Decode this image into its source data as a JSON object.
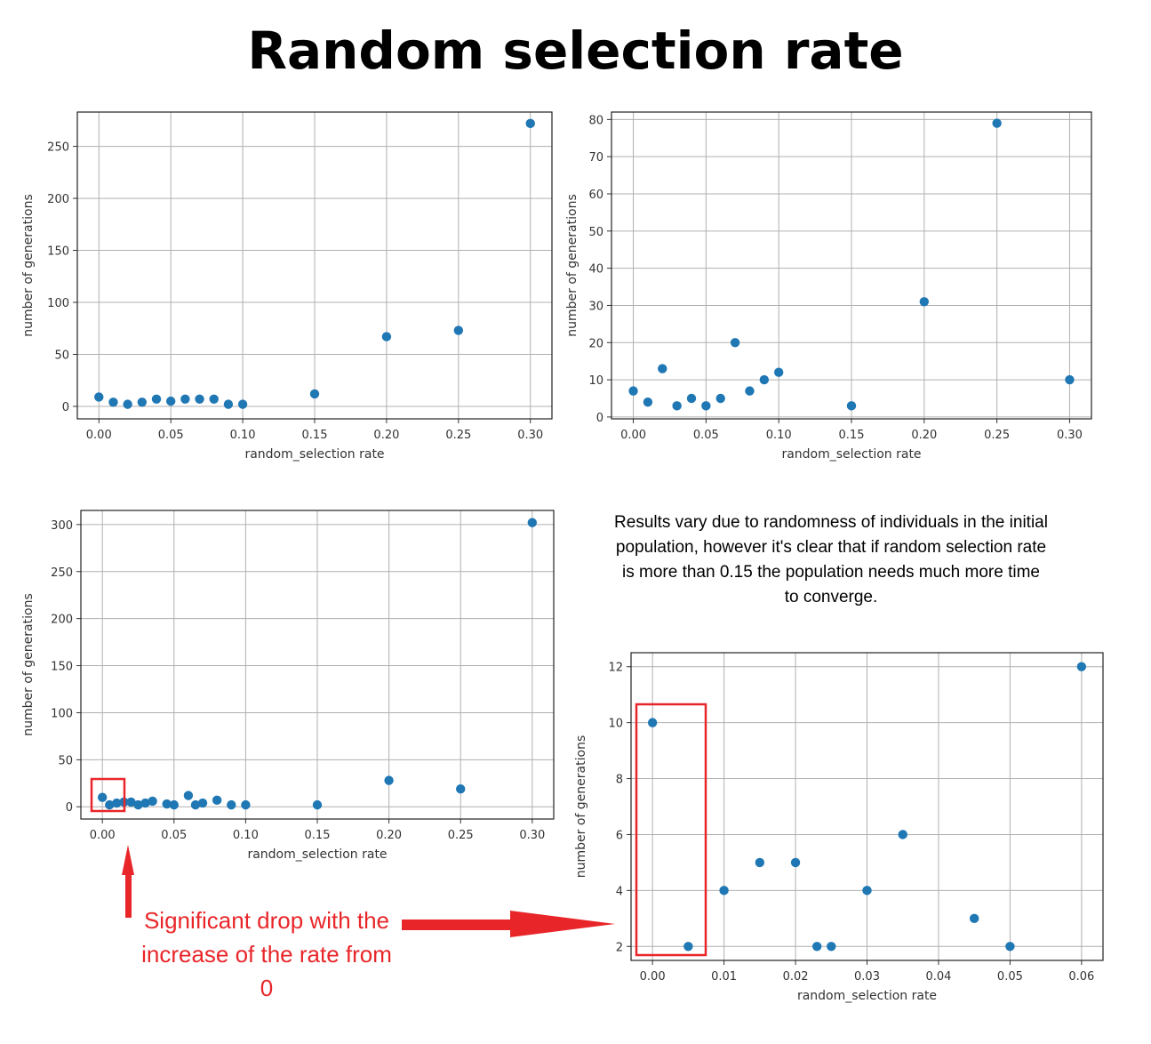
{
  "title": "Random selection rate",
  "note": "Results vary due to randomness of individuals in the initial population, however it's clear that if random selection rate is more than 0.15 the population needs much more time to converge.",
  "annotation": {
    "text": "Significant drop with the increase of the rate from 0",
    "color": "#e8262a"
  },
  "colors": {
    "marker": "#1f77b4",
    "grid": "#b0b0b0",
    "highlight": "#e8262a"
  },
  "chart_data": [
    {
      "type": "scatter",
      "xlabel": "random_selection rate",
      "ylabel": "number of generations",
      "xlim": [
        -0.015,
        0.315
      ],
      "ylim": [
        -12,
        283
      ],
      "xticks": [
        0.0,
        0.05,
        0.1,
        0.15,
        0.2,
        0.25,
        0.3
      ],
      "xtick_labels": [
        "0.00",
        "0.05",
        "0.10",
        "0.15",
        "0.20",
        "0.25",
        "0.30"
      ],
      "yticks": [
        0,
        50,
        100,
        150,
        200,
        250
      ],
      "ytick_labels": [
        "0",
        "50",
        "100",
        "150",
        "200",
        "250"
      ],
      "grid": true,
      "x": [
        0.0,
        0.01,
        0.02,
        0.03,
        0.04,
        0.05,
        0.06,
        0.07,
        0.08,
        0.09,
        0.1,
        0.15,
        0.2,
        0.25,
        0.3
      ],
      "y": [
        9,
        4,
        2,
        4,
        7,
        5,
        7,
        7,
        7,
        2,
        2,
        12,
        67,
        73,
        272
      ]
    },
    {
      "type": "scatter",
      "xlabel": "random_selection rate",
      "ylabel": "number of generations",
      "xlim": [
        -0.015,
        0.315
      ],
      "ylim": [
        -0.5,
        82
      ],
      "xticks": [
        0.0,
        0.05,
        0.1,
        0.15,
        0.2,
        0.25,
        0.3
      ],
      "xtick_labels": [
        "0.00",
        "0.05",
        "0.10",
        "0.15",
        "0.20",
        "0.25",
        "0.30"
      ],
      "yticks": [
        0,
        10,
        20,
        30,
        40,
        50,
        60,
        70,
        80
      ],
      "ytick_labels": [
        "0",
        "10",
        "20",
        "30",
        "40",
        "50",
        "60",
        "70",
        "80"
      ],
      "grid": true,
      "x": [
        0.0,
        0.01,
        0.02,
        0.03,
        0.04,
        0.05,
        0.06,
        0.07,
        0.08,
        0.09,
        0.1,
        0.15,
        0.2,
        0.25,
        0.3
      ],
      "y": [
        7,
        4,
        13,
        3,
        5,
        3,
        5,
        20,
        7,
        10,
        12,
        3,
        31,
        79,
        10
      ]
    },
    {
      "type": "scatter",
      "xlabel": "random_selection rate",
      "ylabel": "number of generations",
      "xlim": [
        -0.015,
        0.315
      ],
      "ylim": [
        -13,
        315
      ],
      "xticks": [
        0.0,
        0.05,
        0.1,
        0.15,
        0.2,
        0.25,
        0.3
      ],
      "xtick_labels": [
        "0.00",
        "0.05",
        "0.10",
        "0.15",
        "0.20",
        "0.25",
        "0.30"
      ],
      "yticks": [
        0,
        50,
        100,
        150,
        200,
        250,
        300
      ],
      "ytick_labels": [
        "0",
        "50",
        "100",
        "150",
        "200",
        "250",
        "300"
      ],
      "grid": true,
      "x": [
        0.0,
        0.005,
        0.01,
        0.015,
        0.02,
        0.025,
        0.03,
        0.035,
        0.045,
        0.05,
        0.06,
        0.065,
        0.07,
        0.08,
        0.09,
        0.1,
        0.15,
        0.2,
        0.25,
        0.3
      ],
      "y": [
        10,
        2,
        4,
        5,
        5,
        2,
        4,
        6,
        3,
        2,
        12,
        2,
        4,
        7,
        2,
        2,
        2,
        28,
        19,
        302
      ]
    },
    {
      "type": "scatter",
      "xlabel": "random_selection rate",
      "ylabel": "number of generations",
      "xlim": [
        -0.003,
        0.063
      ],
      "ylim": [
        1.5,
        12.5
      ],
      "xticks": [
        0.0,
        0.01,
        0.02,
        0.03,
        0.04,
        0.05,
        0.06
      ],
      "xtick_labels": [
        "0.00",
        "0.01",
        "0.02",
        "0.03",
        "0.04",
        "0.05",
        "0.06"
      ],
      "yticks": [
        2,
        4,
        6,
        8,
        10,
        12
      ],
      "ytick_labels": [
        "2",
        "4",
        "6",
        "8",
        "10",
        "12"
      ],
      "grid": true,
      "x": [
        0.0,
        0.005,
        0.01,
        0.015,
        0.02,
        0.023,
        0.025,
        0.03,
        0.035,
        0.045,
        0.05,
        0.06
      ],
      "y": [
        10,
        2,
        4,
        5,
        5,
        2,
        2,
        4,
        6,
        3,
        2,
        12
      ]
    }
  ]
}
